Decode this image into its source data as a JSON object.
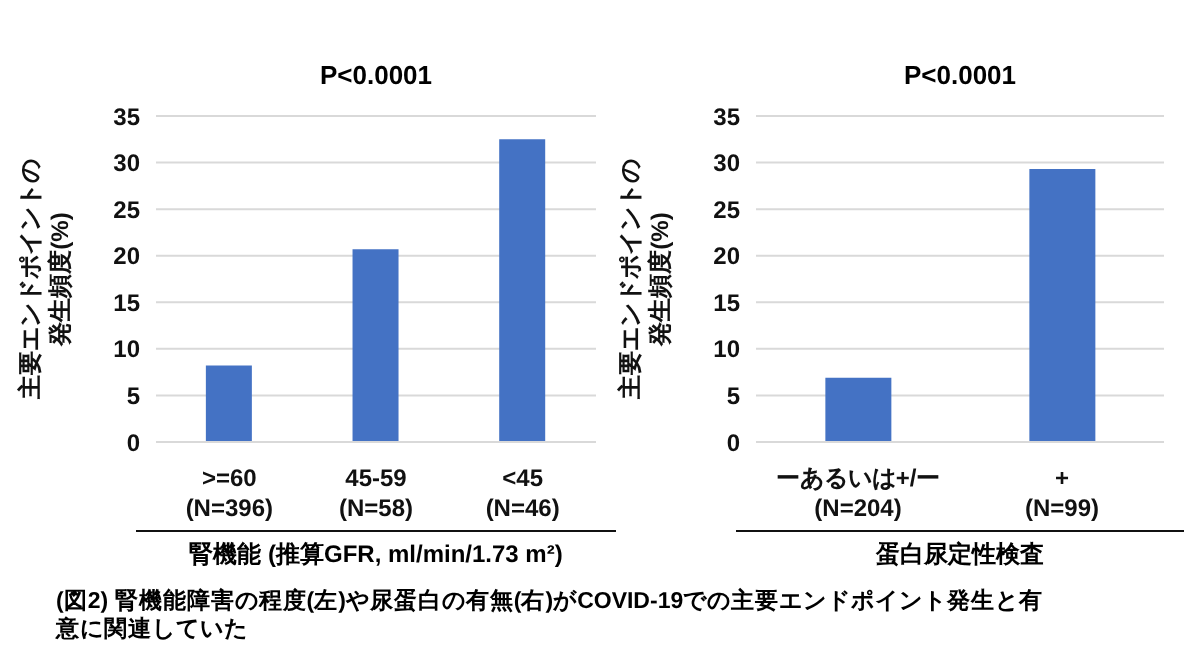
{
  "chart_data": [
    {
      "type": "bar",
      "title": "P<0.0001",
      "categories": [
        ">=60\n(N=396)",
        "45-59\n(N=58)",
        "<45\n(N=46)"
      ],
      "values": [
        8.2,
        20.7,
        32.5
      ],
      "color": "#4472c4",
      "ylim": [
        0,
        35
      ],
      "yticks": [
        0,
        5,
        10,
        15,
        20,
        25,
        30,
        35
      ],
      "grid": "y",
      "ylabel": "主要エンドポイントの発生頻度(%)",
      "xlabel": "腎機能 (推算GFR, ml/min/1.73 m²)",
      "annotations": [
        "(図2) 腎機能障害の程度(左)や尿蛋白の有無(右)がCOVID-19での主要エンドポイント発生と有意に関連していた"
      ]
    },
    {
      "type": "bar",
      "title": "P<0.0001",
      "categories": [
        "ーあるいは+/ー\n(N=204)",
        "+\n(N=99)"
      ],
      "values": [
        6.9,
        29.3
      ],
      "color": "#4472c4",
      "ylim": [
        0,
        35
      ],
      "yticks": [
        0,
        5,
        10,
        15,
        20,
        25,
        30,
        35
      ],
      "grid": "y",
      "ylabel": "主要エンドポイントの発生頻度(%)",
      "xlabel": "蛋白尿定性検査"
    }
  ]
}
